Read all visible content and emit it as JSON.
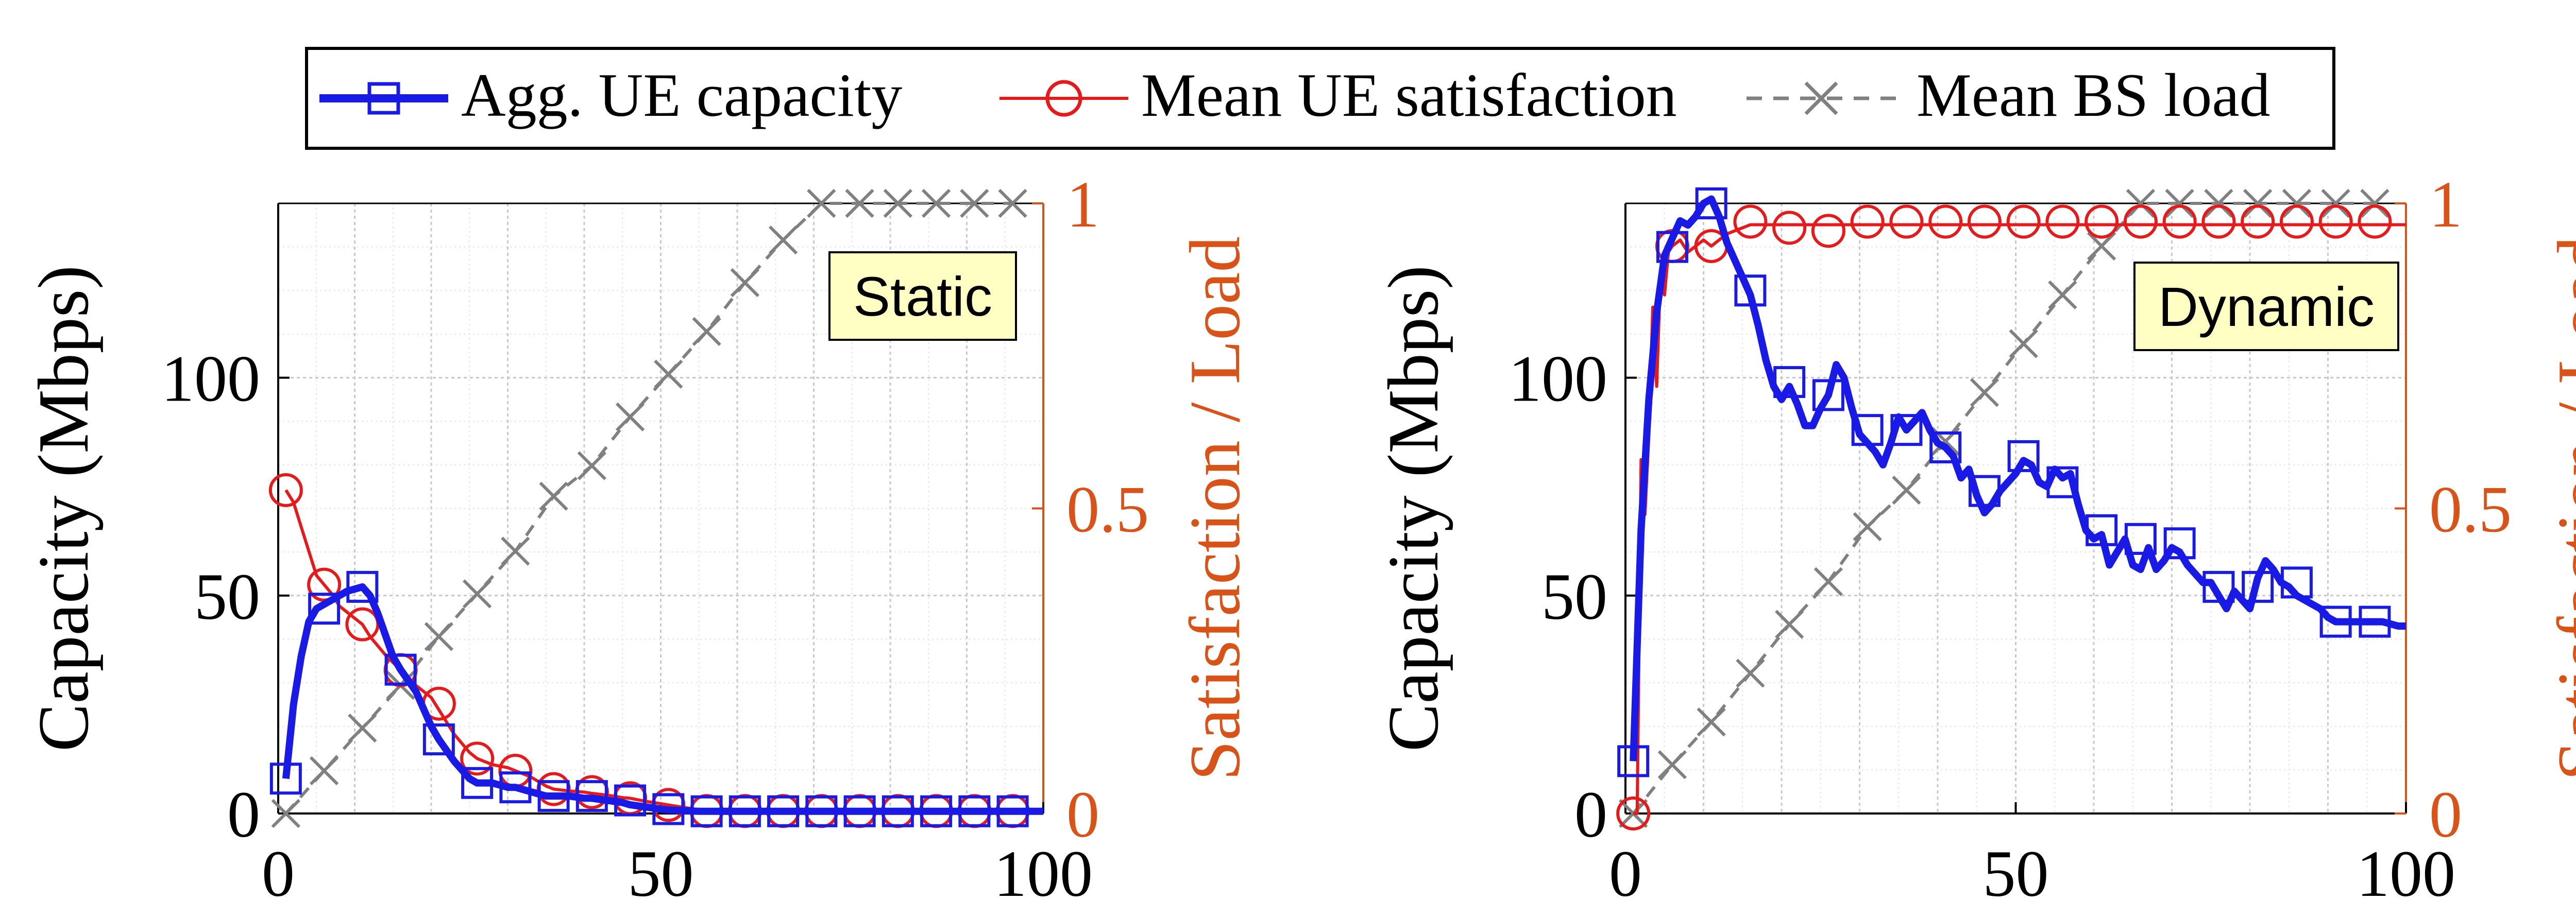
{
  "legend": {
    "capacity": "Agg. UE capacity",
    "satisfaction": "Mean UE satisfaction",
    "load": "Mean BS load"
  },
  "colors": {
    "capacity": "#1a1ae6",
    "satisfaction": "#e61a1a",
    "load": "#808080",
    "right_axis": "#d95319",
    "badge_fill": "#ffffc4"
  },
  "chart_data": [
    {
      "type": "line",
      "annotation": "Static",
      "ylabel_left": "Capacity (Mbps)",
      "ylabel_right": "Satisfaction / Load",
      "xlabel": "",
      "xlim": [
        0,
        100
      ],
      "ylim_left": [
        0,
        140
      ],
      "ylim_right": [
        0,
        1
      ],
      "grid": true,
      "x_ticks": [
        0,
        50,
        100
      ],
      "y_left_ticks": [
        0,
        50,
        100
      ],
      "y_right_ticks": [
        0,
        0.5,
        1
      ],
      "series": [
        {
          "key": "capacity",
          "axis": "left",
          "line_x": [
            1,
            2,
            3,
            4,
            5,
            6,
            7,
            8,
            9,
            10,
            11,
            12,
            13,
            14,
            15,
            16,
            18,
            20,
            21,
            23,
            25,
            26,
            28,
            30,
            31,
            33,
            35,
            36,
            38,
            40,
            41,
            43,
            45,
            46,
            48,
            50,
            51,
            55,
            60,
            65,
            70,
            75,
            80,
            85,
            90,
            95,
            100
          ],
          "line_y": [
            8,
            25,
            36,
            44,
            47,
            48,
            49,
            50,
            51,
            51.5,
            52,
            50,
            46,
            41,
            36,
            33,
            28,
            20,
            17,
            12,
            8,
            7,
            7,
            6,
            6,
            5,
            4,
            4,
            4,
            3.5,
            3.5,
            3,
            2.5,
            2,
            1.5,
            1,
            0.8,
            0.5,
            0.5,
            0.5,
            0.5,
            0.5,
            0.5,
            0.5,
            0.5,
            0.5,
            0.5
          ],
          "marker_x": [
            1,
            6,
            11,
            16,
            21,
            26,
            31,
            36,
            41,
            46,
            51,
            56,
            61,
            66,
            71,
            76,
            81,
            86,
            91,
            96
          ],
          "marker_y": [
            8,
            47,
            52,
            33,
            17,
            7,
            6,
            4,
            4,
            3,
            1,
            0.5,
            0.5,
            0.5,
            0.5,
            0.5,
            0.5,
            0.5,
            0.5,
            0.5
          ]
        },
        {
          "key": "satisfaction",
          "axis": "right",
          "line_x": [
            1,
            2,
            3,
            4,
            5,
            6,
            7,
            8,
            9,
            10,
            11,
            12,
            14,
            16,
            18,
            20,
            21,
            23,
            25,
            26,
            28,
            30,
            31,
            33,
            35,
            36,
            38,
            40,
            41,
            43,
            45,
            46,
            48,
            50,
            51,
            55,
            60,
            65,
            70,
            75,
            80,
            85,
            90,
            95,
            100
          ],
          "line_y": [
            0.53,
            0.51,
            0.47,
            0.43,
            0.39,
            0.375,
            0.36,
            0.34,
            0.33,
            0.32,
            0.31,
            0.29,
            0.26,
            0.235,
            0.21,
            0.19,
            0.17,
            0.13,
            0.1,
            0.09,
            0.08,
            0.075,
            0.07,
            0.06,
            0.045,
            0.04,
            0.037,
            0.035,
            0.033,
            0.03,
            0.026,
            0.025,
            0.02,
            0.016,
            0.014,
            0.006,
            0.004,
            0.004,
            0.004,
            0.004,
            0.004,
            0.004,
            0.004,
            0.004,
            0.004
          ],
          "marker_x": [
            1,
            6,
            11,
            16,
            21,
            26,
            31,
            36,
            41,
            46,
            51,
            56,
            61,
            66,
            71,
            76,
            81,
            86,
            91,
            96
          ],
          "marker_y": [
            0.53,
            0.375,
            0.31,
            0.235,
            0.18,
            0.09,
            0.07,
            0.04,
            0.035,
            0.025,
            0.014,
            0.004,
            0.004,
            0.004,
            0.004,
            0.004,
            0.004,
            0.004,
            0.004,
            0.004
          ]
        },
        {
          "key": "load",
          "axis": "right",
          "line_x": [
            1,
            6,
            11,
            16,
            21,
            26,
            31,
            36,
            41,
            46,
            51,
            56,
            61,
            66,
            71,
            76,
            81,
            86,
            91,
            96
          ],
          "line_y": [
            0.0,
            0.07,
            0.14,
            0.21,
            0.29,
            0.36,
            0.43,
            0.52,
            0.57,
            0.65,
            0.72,
            0.79,
            0.87,
            0.94,
            1.0,
            1.0,
            1.0,
            1.0,
            1.0,
            1.0
          ],
          "marker_x": [
            1,
            6,
            11,
            16,
            21,
            26,
            31,
            36,
            41,
            46,
            51,
            56,
            61,
            66,
            71,
            76,
            81,
            86,
            91,
            96
          ],
          "marker_y": [
            0.0,
            0.07,
            0.14,
            0.21,
            0.29,
            0.36,
            0.43,
            0.52,
            0.57,
            0.65,
            0.72,
            0.79,
            0.87,
            0.94,
            1.0,
            1.0,
            1.0,
            1.0,
            1.0,
            1.0
          ]
        }
      ]
    },
    {
      "type": "line",
      "annotation": "Dynamic",
      "ylabel_left": "Capacity (Mbps)",
      "ylabel_right": "Satisfaction / Load",
      "xlabel": "",
      "xlim": [
        0,
        100
      ],
      "ylim_left": [
        0,
        140
      ],
      "ylim_right": [
        0,
        1
      ],
      "grid": true,
      "x_ticks": [
        0,
        50,
        100
      ],
      "y_left_ticks": [
        0,
        50,
        100
      ],
      "y_right_ticks": [
        0,
        0.5,
        1
      ],
      "series": [
        {
          "key": "capacity",
          "axis": "left",
          "line_x": [
            1,
            2,
            3,
            4,
            5,
            6,
            7,
            8,
            9,
            10,
            11,
            12,
            13,
            14,
            15,
            16,
            17,
            18,
            19,
            20,
            21,
            22,
            23,
            24,
            25,
            26,
            27,
            28,
            29,
            30,
            31,
            32,
            33,
            34,
            35,
            36,
            37,
            38,
            39,
            40,
            41,
            42,
            43,
            44,
            45,
            46,
            47,
            48,
            49,
            50,
            51,
            52,
            53,
            54,
            55,
            56,
            57,
            58,
            59,
            60,
            61,
            62,
            63,
            64,
            65,
            66,
            67,
            68,
            69,
            70,
            71,
            72,
            73,
            74,
            75,
            76,
            77,
            78,
            79,
            80,
            81,
            82,
            83,
            84,
            85,
            86,
            87,
            88,
            89,
            90,
            91,
            92,
            93,
            94,
            95,
            96,
            97,
            98,
            99,
            100
          ],
          "line_y": [
            12,
            65,
            95,
            115,
            128,
            132,
            136,
            135,
            137,
            140,
            141,
            137,
            131,
            127,
            123,
            119,
            112,
            104,
            98,
            95,
            98,
            94,
            89,
            89,
            93,
            96,
            103,
            100,
            93,
            87,
            85,
            83,
            80,
            85,
            91,
            88,
            90,
            92,
            88,
            85,
            84,
            82,
            77,
            79,
            73,
            69,
            71,
            74,
            76,
            78,
            81,
            80,
            76,
            75,
            79,
            77,
            78,
            71,
            65,
            63,
            64,
            57,
            60,
            63,
            57,
            56,
            61,
            56,
            58,
            61,
            60,
            57,
            55,
            53,
            53,
            50,
            47,
            51,
            49,
            47,
            54,
            58,
            56,
            53,
            52,
            50,
            49,
            48,
            47,
            45,
            44,
            44,
            44,
            44,
            44,
            44,
            44,
            43.5,
            43,
            43
          ],
          "marker_x": [
            1,
            6,
            11,
            16,
            21,
            26,
            31,
            36,
            41,
            46,
            51,
            56,
            61,
            66,
            71,
            76,
            81,
            86,
            91,
            96
          ],
          "marker_y": [
            12,
            130,
            140,
            120,
            99,
            96,
            88,
            88,
            84,
            74,
            82,
            76,
            65,
            63,
            62,
            52,
            52,
            53,
            44,
            44
          ]
        },
        {
          "key": "satisfaction",
          "axis": "right",
          "line_x": [
            1,
            1.5,
            2,
            2.5,
            3,
            3.5,
            4,
            4.5,
            5,
            5.5,
            6,
            7,
            8,
            9,
            10,
            11,
            12,
            13,
            14,
            15,
            16,
            18,
            20,
            25,
            30,
            35,
            40,
            45,
            50,
            55,
            60,
            65,
            70,
            75,
            80,
            85,
            90,
            95,
            100
          ],
          "line_y": [
            0.0,
            0.0,
            0.58,
            0.49,
            0.62,
            0.83,
            0.7,
            0.89,
            0.85,
            0.92,
            0.93,
            0.94,
            0.92,
            0.93,
            0.94,
            0.93,
            0.94,
            0.95,
            0.955,
            0.96,
            0.965,
            0.965,
            0.965,
            0.965,
            0.965,
            0.965,
            0.965,
            0.965,
            0.965,
            0.965,
            0.965,
            0.965,
            0.965,
            0.965,
            0.965,
            0.965,
            0.965,
            0.965,
            0.965
          ],
          "marker_x": [
            1,
            6,
            11,
            16,
            21,
            26,
            31,
            36,
            41,
            46,
            51,
            56,
            61,
            66,
            71,
            76,
            81,
            86,
            91,
            96
          ],
          "marker_y": [
            0.0,
            0.93,
            0.93,
            0.97,
            0.96,
            0.955,
            0.97,
            0.97,
            0.97,
            0.97,
            0.97,
            0.97,
            0.97,
            0.97,
            0.97,
            0.97,
            0.97,
            0.97,
            0.97,
            0.97
          ]
        },
        {
          "key": "load",
          "axis": "right",
          "line_x": [
            1,
            6,
            11,
            16,
            21,
            26,
            31,
            36,
            41,
            46,
            51,
            56,
            61,
            66,
            71,
            76,
            81,
            86,
            91,
            96
          ],
          "line_y": [
            0.0,
            0.08,
            0.15,
            0.23,
            0.31,
            0.38,
            0.47,
            0.53,
            0.61,
            0.69,
            0.77,
            0.85,
            0.93,
            1.0,
            1.0,
            1.0,
            1.0,
            1.0,
            1.0,
            1.0
          ],
          "marker_x": [
            1,
            6,
            11,
            16,
            21,
            26,
            31,
            36,
            41,
            46,
            51,
            56,
            61,
            66,
            71,
            76,
            81,
            86,
            91,
            96
          ],
          "marker_y": [
            0.0,
            0.08,
            0.15,
            0.23,
            0.31,
            0.38,
            0.47,
            0.53,
            0.61,
            0.69,
            0.77,
            0.85,
            0.93,
            1.0,
            1.0,
            1.0,
            1.0,
            1.0,
            1.0,
            1.0
          ]
        }
      ]
    }
  ]
}
